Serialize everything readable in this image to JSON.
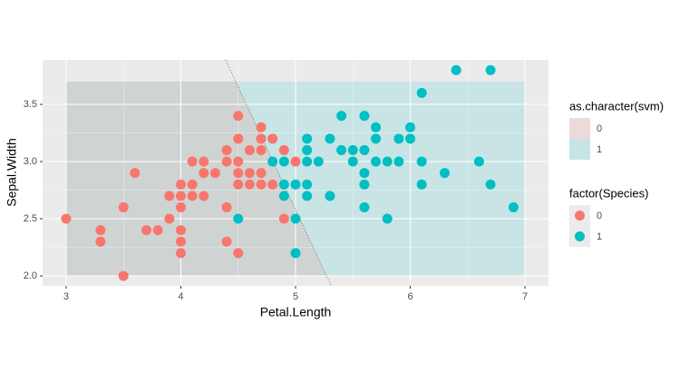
{
  "chart_data": {
    "type": "scatter",
    "xlabel": "Petal.Length",
    "ylabel": "Sepal.Width",
    "xlim": [
      2.795,
      7.205
    ],
    "ylim": [
      1.913,
      3.889
    ],
    "xticks": [
      3,
      4,
      5,
      6,
      7
    ],
    "yticks": [
      {
        "value": 2,
        "label": "2.0"
      },
      {
        "value": 2.5,
        "label": "2.5"
      },
      {
        "value": 3,
        "label": "3.0"
      },
      {
        "value": 3.5,
        "label": "3.5"
      }
    ],
    "grid": true,
    "region": {
      "xlim": [
        3,
        7
      ],
      "ylim": [
        2,
        3.7
      ]
    },
    "boundary": {
      "x": [
        4.39,
        5.31
      ],
      "y": [
        3.889,
        1.913
      ]
    },
    "fill_legend": {
      "title": "as.character(svm)",
      "entries": [
        {
          "name": "0",
          "color": "#F8766D"
        },
        {
          "name": "1",
          "color": "#00BFC4"
        }
      ]
    },
    "legend_title": "factor(Species)",
    "series": [
      {
        "name": "0",
        "color": "#F8766D",
        "x": [
          3.0,
          3.3,
          3.3,
          3.5,
          3.5,
          3.6,
          3.7,
          3.8,
          3.9,
          3.9,
          4.0,
          4.0,
          4.0,
          4.0,
          4.0,
          4.0,
          4.1,
          4.1,
          4.1,
          4.2,
          4.2,
          4.2,
          4.3,
          4.4,
          4.4,
          4.4,
          4.4,
          4.5,
          4.5,
          4.5,
          4.5,
          4.5,
          4.5,
          4.6,
          4.6,
          4.6,
          4.7,
          4.7,
          4.7,
          4.7,
          4.7,
          4.8,
          4.8,
          4.9,
          4.9,
          5.0
        ],
        "values": [
          2.5,
          2.4,
          2.3,
          2.0,
          2.6,
          2.9,
          2.4,
          2.4,
          2.5,
          2.7,
          2.3,
          2.2,
          2.4,
          2.6,
          2.7,
          2.8,
          2.8,
          3.0,
          2.7,
          3.0,
          2.9,
          2.7,
          2.9,
          3.1,
          3.0,
          2.6,
          2.3,
          3.4,
          3.2,
          3.0,
          2.9,
          2.8,
          2.2,
          3.1,
          2.9,
          2.8,
          3.3,
          3.2,
          3.1,
          2.9,
          2.8,
          3.2,
          2.8,
          3.1,
          2.5,
          3.0
        ]
      },
      {
        "name": "1",
        "color": "#00BFC4",
        "x": [
          4.8,
          4.9,
          4.9,
          4.9,
          4.5,
          5.0,
          5.0,
          5.0,
          5.1,
          5.1,
          5.1,
          5.1,
          5.1,
          5.2,
          5.3,
          5.3,
          5.4,
          5.4,
          5.5,
          5.5,
          5.6,
          5.6,
          5.6,
          5.6,
          5.6,
          5.7,
          5.7,
          5.7,
          5.8,
          5.8,
          5.9,
          5.9,
          6.0,
          6.0,
          6.1,
          6.1,
          6.1,
          6.3,
          6.4,
          6.6,
          6.7,
          6.7,
          6.9
        ],
        "values": [
          3.0,
          3.0,
          2.8,
          2.7,
          2.5,
          2.8,
          2.5,
          2.2,
          3.2,
          3.1,
          3.0,
          2.8,
          2.7,
          3.0,
          3.2,
          2.7,
          3.4,
          3.1,
          3.1,
          3.0,
          3.4,
          3.1,
          2.9,
          2.8,
          2.6,
          3.3,
          3.2,
          3.0,
          3.0,
          2.5,
          3.2,
          3.0,
          3.3,
          3.2,
          3.6,
          3.0,
          2.8,
          2.9,
          3.8,
          3.0,
          3.8,
          2.8,
          2.6
        ]
      }
    ]
  }
}
